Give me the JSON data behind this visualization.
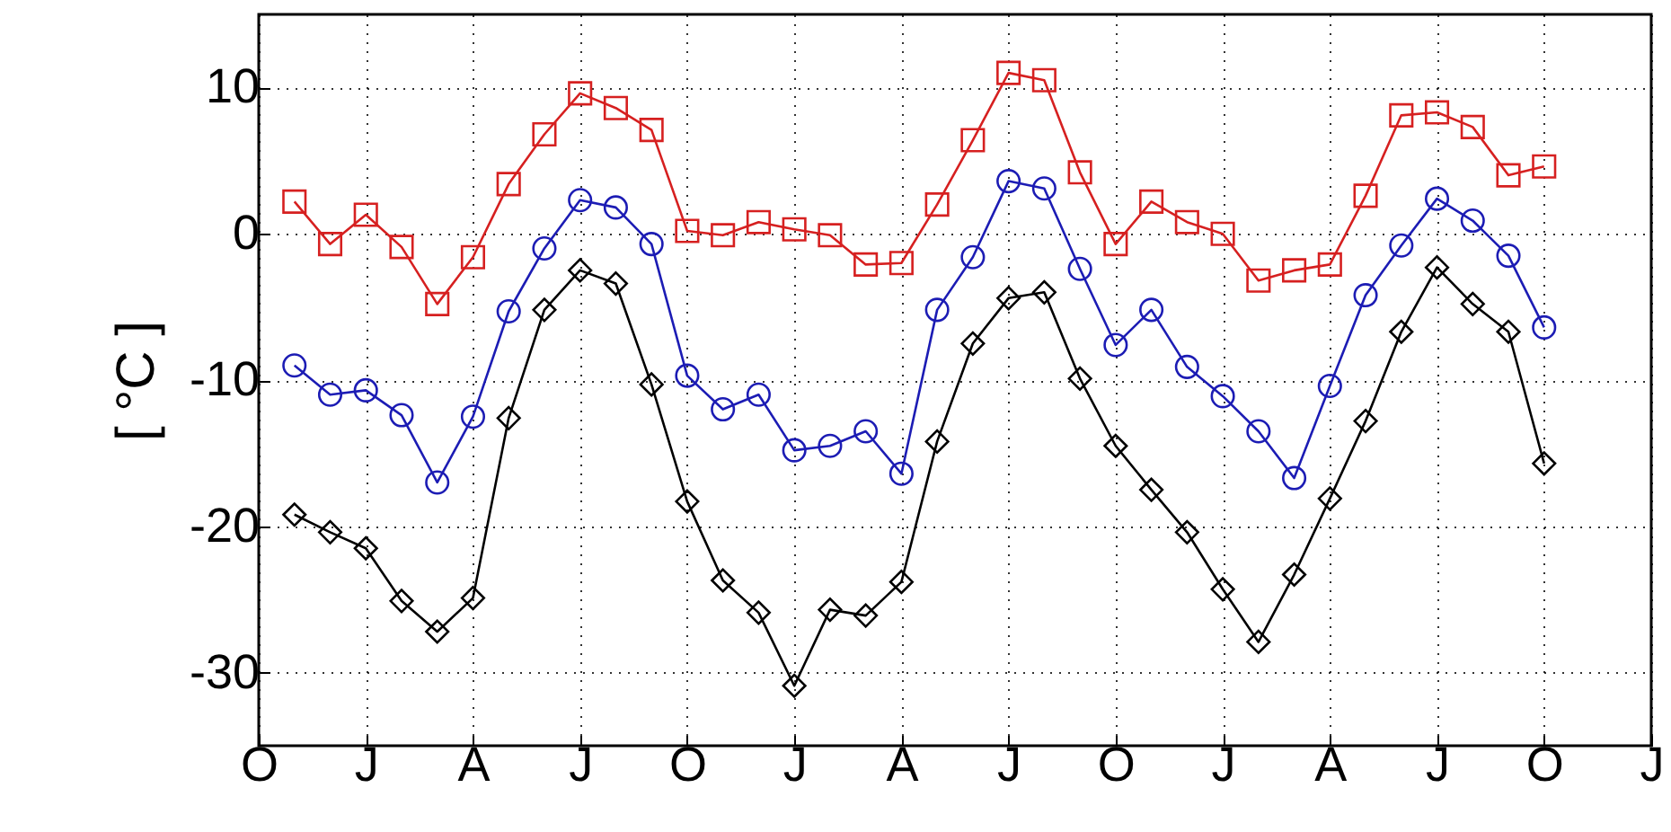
{
  "chart_data": {
    "type": "line",
    "ylabel": "[ °C ]",
    "ylim": [
      -35,
      15
    ],
    "categories": [
      "O",
      null,
      null,
      "J",
      null,
      null,
      "A",
      null,
      null,
      "J",
      null,
      null,
      "O",
      null,
      null,
      "J",
      null,
      null,
      "A",
      null,
      null,
      "J",
      null,
      null,
      "O",
      null,
      null,
      "J",
      null,
      null,
      "A",
      null,
      null,
      "J",
      null,
      null,
      "O",
      null,
      null,
      "J"
    ],
    "yticks": [
      -30,
      -20,
      -10,
      0,
      10
    ],
    "grid": true,
    "line_style": "solid",
    "series": [
      {
        "color": "#d62020",
        "marker": "square",
        "values": [
          null,
          2.2,
          -0.7,
          1.3,
          -0.9,
          -4.8,
          -1.6,
          3.4,
          6.8,
          9.6,
          8.6,
          7.1,
          0.2,
          -0.1,
          0.8,
          0.3,
          -0.1,
          -2.1,
          -2.0,
          2.0,
          6.4,
          11.0,
          10.5,
          4.2,
          -0.7,
          2.2,
          0.8,
          0.0,
          -3.2,
          -2.5,
          -2.1,
          2.6,
          8.1,
          8.3,
          7.3,
          4.0,
          4.6,
          null,
          null,
          null
        ]
      },
      {
        "color": "#1c1cb4",
        "marker": "circle",
        "values": [
          null,
          -9.0,
          -11.0,
          -10.7,
          -12.4,
          -17.0,
          -12.5,
          -5.3,
          -1.0,
          2.3,
          1.8,
          -0.7,
          -9.7,
          -12.0,
          -11.0,
          -14.8,
          -14.5,
          -13.5,
          -16.4,
          -5.2,
          -1.6,
          3.6,
          3.1,
          -2.4,
          -7.6,
          -5.2,
          -9.1,
          -11.1,
          -13.5,
          -16.7,
          -10.4,
          -4.2,
          -0.8,
          2.4,
          0.9,
          -1.5,
          -6.4,
          null,
          null,
          null
        ]
      },
      {
        "color": "#000000",
        "marker": "diamond",
        "values": [
          null,
          -19.2,
          -20.4,
          -21.5,
          -25.1,
          -27.2,
          -24.9,
          -12.6,
          -5.2,
          -2.5,
          -3.4,
          -10.3,
          -18.3,
          -23.7,
          -25.9,
          -30.9,
          -25.7,
          -26.1,
          -23.8,
          -14.2,
          -7.5,
          -4.4,
          -4.0,
          -9.9,
          -14.5,
          -17.5,
          -20.4,
          -24.3,
          -27.9,
          -23.3,
          -18.1,
          -12.8,
          -6.7,
          -2.3,
          -4.8,
          -6.7,
          -15.7,
          null,
          null,
          null
        ]
      }
    ]
  }
}
